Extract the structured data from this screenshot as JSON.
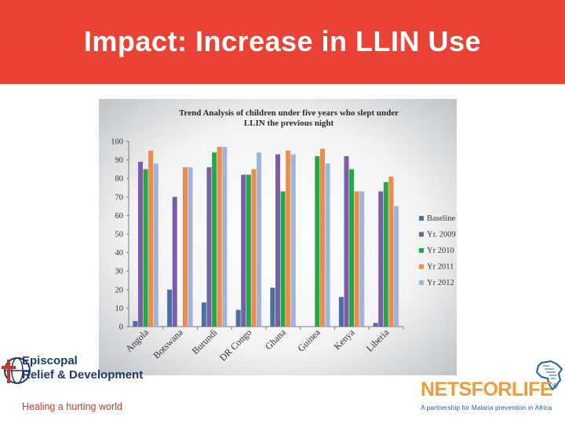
{
  "header": {
    "title": "Impact: Increase in LLIN Use"
  },
  "colors": {
    "header_bg": "#ea4335",
    "chart_bg_inner": "#ffffff",
    "chart_bg_outer": "#b8bcc0",
    "series": [
      "#4a6fa5",
      "#7b5ea7",
      "#22a84a",
      "#ee8a4a",
      "#9fb4d8"
    ]
  },
  "chart_data": {
    "type": "bar",
    "title": "Trend Analysis of children under five years who slept under LLIN the previous night",
    "title_lines": [
      "Trend Analysis of children under five years who slept under",
      "LLIN the previous night"
    ],
    "categories": [
      "Angola",
      "Botswana",
      "Burundi",
      "DR Congo",
      "Ghana",
      "Guinea",
      "Kenya",
      "Liberia"
    ],
    "series": [
      {
        "name": "Baseline",
        "values": [
          3,
          20,
          13,
          9,
          21,
          null,
          16,
          2
        ]
      },
      {
        "name": "Yr. 2009",
        "values": [
          89,
          70,
          86,
          82,
          93,
          null,
          92,
          73
        ]
      },
      {
        "name": "Yr 2010",
        "values": [
          85,
          null,
          94,
          82,
          73,
          92,
          85,
          78
        ]
      },
      {
        "name": "Yr 2011",
        "values": [
          95,
          86,
          97,
          85,
          95,
          96,
          73,
          81
        ]
      },
      {
        "name": "Yr 2012",
        "values": [
          88,
          86,
          97,
          94,
          93,
          88,
          73,
          65
        ]
      }
    ],
    "ylim": [
      0,
      100
    ],
    "yticks": [
      0,
      10,
      20,
      30,
      40,
      50,
      60,
      70,
      80,
      90,
      100
    ],
    "xlabel": "",
    "ylabel": "",
    "legend_position": "right"
  },
  "logos": {
    "episcopal": {
      "line1": "Episcopal",
      "line2": "Relief & Development",
      "tagline": "Healing a hurting world"
    },
    "netsforlife": {
      "name": "NETSFORLIFE",
      "trademark": "®",
      "tagline": "A partnership for Malaria prevention in Africa"
    }
  }
}
